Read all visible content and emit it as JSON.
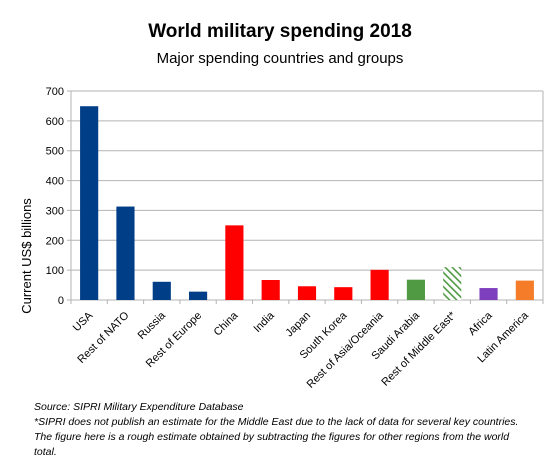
{
  "chart_data": {
    "type": "bar",
    "title": "World military spending 2018",
    "subtitle": "Major spending countries and groups",
    "ylabel": "Current US$ billions",
    "xlabel": "",
    "ylim": [
      0,
      700
    ],
    "yticks": [
      0,
      100,
      200,
      300,
      400,
      500,
      600,
      700
    ],
    "grid": true,
    "categories": [
      "USA",
      "Rest of NATO",
      "Russia",
      "Rest of Europe",
      "China",
      "India",
      "Japan",
      "South Korea",
      "Rest of Asia/Oceania",
      "Saudi Arabia",
      "Rest of Middle East*",
      "Africa",
      "Latin America"
    ],
    "values": [
      649,
      313,
      61,
      28,
      250,
      67,
      46,
      43,
      101,
      68,
      110,
      40,
      65
    ],
    "colors": [
      "#003f87",
      "#003f87",
      "#003f87",
      "#003f87",
      "#ff0000",
      "#ff0000",
      "#ff0000",
      "#ff0000",
      "#ff0000",
      "#4f9a43",
      "hatched-green",
      "#7e3fbf",
      "#f57d2a"
    ]
  },
  "footnote": {
    "source": "Source: SIPRI Military Expenditure Database",
    "note": "*SIPRI does not publish an estimate for the Middle East due to the lack of data for several key countries. The figure here is a rough estimate obtained by subtracting the figures for other regions from the world total."
  }
}
